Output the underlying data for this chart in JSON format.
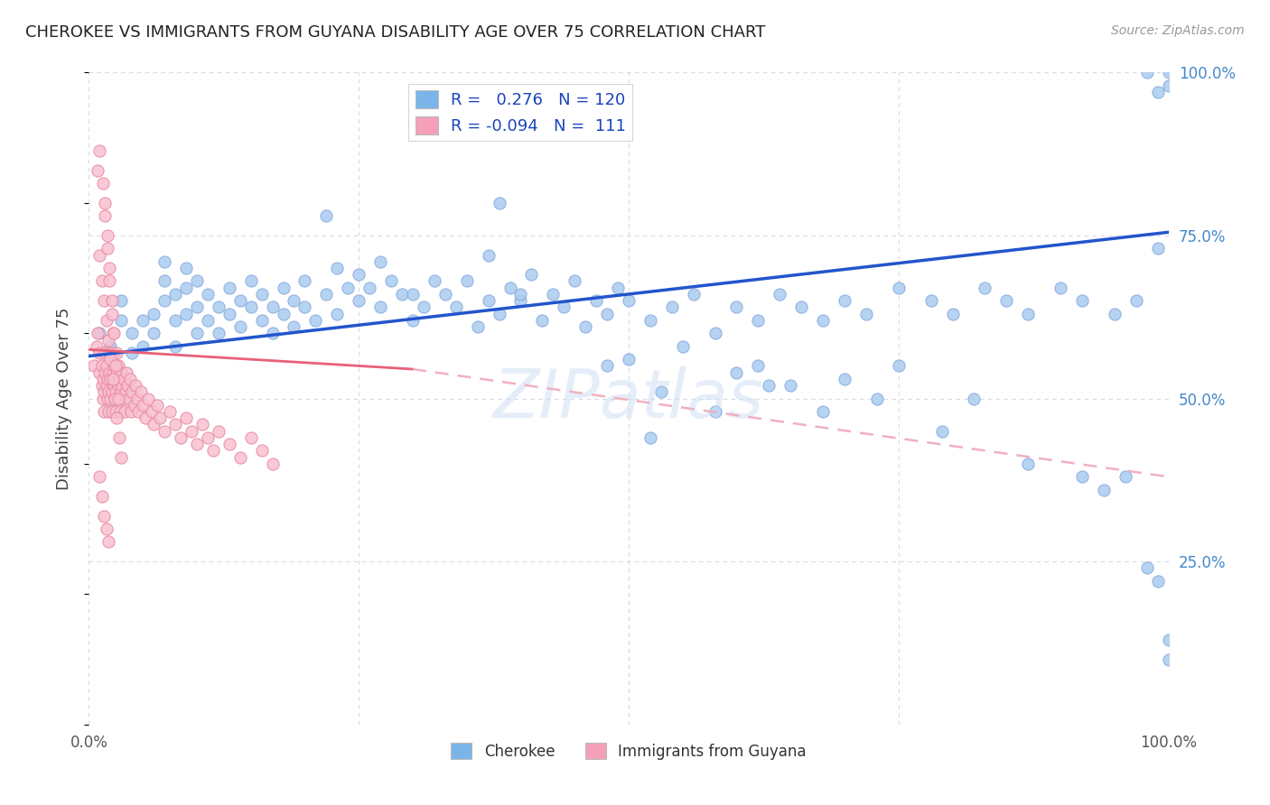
{
  "title": "CHEROKEE VS IMMIGRANTS FROM GUYANA DISABILITY AGE OVER 75 CORRELATION CHART",
  "source": "Source: ZipAtlas.com",
  "ylabel": "Disability Age Over 75",
  "xlim": [
    0,
    1
  ],
  "ylim": [
    0,
    1
  ],
  "ytick_labels_right": [
    "25.0%",
    "50.0%",
    "75.0%",
    "100.0%"
  ],
  "ytick_positions_right": [
    0.25,
    0.5,
    0.75,
    1.0
  ],
  "legend_color1": "#7ab4e8",
  "legend_color2": "#f4a0b8",
  "watermark": "ZIPatlas",
  "line1_color": "#2255cc",
  "line2_color": "#e8607a",
  "line2_dash_color": "#f0b0c0",
  "dot1_color": "#aaccf0",
  "dot2_color": "#f8c0d0",
  "dot_edge1": "#88aade",
  "dot_edge2": "#e888a0",
  "background_color": "#ffffff",
  "grid_color": "#d8d8e8",
  "title_color": "#222222",
  "right_label_color": "#4488cc",
  "cherokee_x": [
    0.01,
    0.02,
    0.03,
    0.03,
    0.04,
    0.04,
    0.05,
    0.05,
    0.06,
    0.06,
    0.07,
    0.07,
    0.07,
    0.08,
    0.08,
    0.08,
    0.09,
    0.09,
    0.09,
    0.1,
    0.1,
    0.1,
    0.11,
    0.11,
    0.12,
    0.12,
    0.13,
    0.13,
    0.14,
    0.14,
    0.15,
    0.15,
    0.16,
    0.16,
    0.17,
    0.17,
    0.18,
    0.18,
    0.19,
    0.19,
    0.2,
    0.2,
    0.21,
    0.22,
    0.22,
    0.23,
    0.23,
    0.24,
    0.25,
    0.25,
    0.26,
    0.27,
    0.27,
    0.28,
    0.29,
    0.3,
    0.3,
    0.31,
    0.32,
    0.33,
    0.34,
    0.35,
    0.36,
    0.37,
    0.38,
    0.39,
    0.4,
    0.41,
    0.42,
    0.43,
    0.44,
    0.45,
    0.46,
    0.47,
    0.48,
    0.49,
    0.5,
    0.52,
    0.54,
    0.56,
    0.58,
    0.6,
    0.62,
    0.64,
    0.66,
    0.68,
    0.7,
    0.72,
    0.75,
    0.78,
    0.8,
    0.83,
    0.85,
    0.87,
    0.9,
    0.92,
    0.95,
    0.97,
    0.98,
    0.99,
    0.99,
    1.0,
    1.0,
    0.37,
    0.38,
    0.4,
    0.48,
    0.5,
    0.52,
    0.55,
    0.58,
    0.6,
    0.62,
    0.65,
    0.68,
    0.7,
    0.73,
    0.75,
    0.79,
    0.82,
    0.87,
    0.92,
    0.94,
    0.96,
    0.98,
    0.99,
    1.0,
    1.0,
    0.53,
    0.63
  ],
  "cherokee_y": [
    0.6,
    0.58,
    0.62,
    0.65,
    0.57,
    0.6,
    0.58,
    0.62,
    0.6,
    0.63,
    0.65,
    0.68,
    0.71,
    0.58,
    0.62,
    0.66,
    0.63,
    0.67,
    0.7,
    0.6,
    0.64,
    0.68,
    0.62,
    0.66,
    0.6,
    0.64,
    0.63,
    0.67,
    0.61,
    0.65,
    0.64,
    0.68,
    0.62,
    0.66,
    0.6,
    0.64,
    0.63,
    0.67,
    0.61,
    0.65,
    0.64,
    0.68,
    0.62,
    0.78,
    0.66,
    0.7,
    0.63,
    0.67,
    0.65,
    0.69,
    0.67,
    0.71,
    0.64,
    0.68,
    0.66,
    0.62,
    0.66,
    0.64,
    0.68,
    0.66,
    0.64,
    0.68,
    0.61,
    0.65,
    0.63,
    0.67,
    0.65,
    0.69,
    0.62,
    0.66,
    0.64,
    0.68,
    0.61,
    0.65,
    0.63,
    0.67,
    0.65,
    0.62,
    0.64,
    0.66,
    0.6,
    0.64,
    0.62,
    0.66,
    0.64,
    0.62,
    0.65,
    0.63,
    0.67,
    0.65,
    0.63,
    0.67,
    0.65,
    0.63,
    0.67,
    0.65,
    0.63,
    0.65,
    1.0,
    0.97,
    0.73,
    0.98,
    1.0,
    0.72,
    0.8,
    0.66,
    0.55,
    0.56,
    0.44,
    0.58,
    0.48,
    0.54,
    0.55,
    0.52,
    0.48,
    0.53,
    0.5,
    0.55,
    0.45,
    0.5,
    0.4,
    0.38,
    0.36,
    0.38,
    0.24,
    0.22,
    0.13,
    0.1,
    0.51,
    0.52
  ],
  "guyana_x": [
    0.005,
    0.007,
    0.008,
    0.01,
    0.01,
    0.012,
    0.012,
    0.013,
    0.013,
    0.014,
    0.014,
    0.015,
    0.015,
    0.016,
    0.016,
    0.017,
    0.017,
    0.018,
    0.018,
    0.019,
    0.019,
    0.02,
    0.02,
    0.021,
    0.021,
    0.022,
    0.022,
    0.022,
    0.023,
    0.023,
    0.024,
    0.024,
    0.025,
    0.025,
    0.026,
    0.026,
    0.027,
    0.027,
    0.028,
    0.028,
    0.029,
    0.03,
    0.03,
    0.031,
    0.032,
    0.032,
    0.033,
    0.034,
    0.035,
    0.036,
    0.037,
    0.038,
    0.039,
    0.04,
    0.042,
    0.043,
    0.045,
    0.046,
    0.048,
    0.05,
    0.052,
    0.055,
    0.058,
    0.06,
    0.063,
    0.066,
    0.07,
    0.075,
    0.08,
    0.085,
    0.09,
    0.095,
    0.1,
    0.105,
    0.11,
    0.115,
    0.12,
    0.13,
    0.14,
    0.15,
    0.16,
    0.17,
    0.01,
    0.012,
    0.014,
    0.016,
    0.018,
    0.02,
    0.022,
    0.024,
    0.026,
    0.028,
    0.03,
    0.015,
    0.017,
    0.019,
    0.021,
    0.023,
    0.025,
    0.027,
    0.013,
    0.015,
    0.017,
    0.019,
    0.021,
    0.01,
    0.012,
    0.014,
    0.016,
    0.018,
    0.008,
    0.01
  ],
  "guyana_y": [
    0.55,
    0.58,
    0.6,
    0.54,
    0.57,
    0.52,
    0.55,
    0.5,
    0.53,
    0.48,
    0.51,
    0.54,
    0.57,
    0.52,
    0.55,
    0.5,
    0.53,
    0.48,
    0.51,
    0.54,
    0.57,
    0.5,
    0.53,
    0.48,
    0.51,
    0.54,
    0.57,
    0.6,
    0.52,
    0.55,
    0.5,
    0.53,
    0.48,
    0.51,
    0.54,
    0.57,
    0.52,
    0.55,
    0.5,
    0.53,
    0.48,
    0.51,
    0.54,
    0.52,
    0.5,
    0.53,
    0.48,
    0.51,
    0.54,
    0.52,
    0.5,
    0.53,
    0.48,
    0.51,
    0.49,
    0.52,
    0.5,
    0.48,
    0.51,
    0.49,
    0.47,
    0.5,
    0.48,
    0.46,
    0.49,
    0.47,
    0.45,
    0.48,
    0.46,
    0.44,
    0.47,
    0.45,
    0.43,
    0.46,
    0.44,
    0.42,
    0.45,
    0.43,
    0.41,
    0.44,
    0.42,
    0.4,
    0.72,
    0.68,
    0.65,
    0.62,
    0.59,
    0.56,
    0.53,
    0.5,
    0.47,
    0.44,
    0.41,
    0.8,
    0.75,
    0.7,
    0.65,
    0.6,
    0.55,
    0.5,
    0.83,
    0.78,
    0.73,
    0.68,
    0.63,
    0.38,
    0.35,
    0.32,
    0.3,
    0.28,
    0.85,
    0.88
  ],
  "line1_x0": 0.0,
  "line1_y0": 0.565,
  "line1_x1": 1.0,
  "line1_y1": 0.755,
  "line2_solid_x0": 0.0,
  "line2_solid_y0": 0.575,
  "line2_solid_x1": 0.3,
  "line2_solid_y1": 0.545,
  "line2_dash_x0": 0.0,
  "line2_dash_y0": 0.575,
  "line2_dash_x1": 1.0,
  "line2_dash_y1": 0.38
}
